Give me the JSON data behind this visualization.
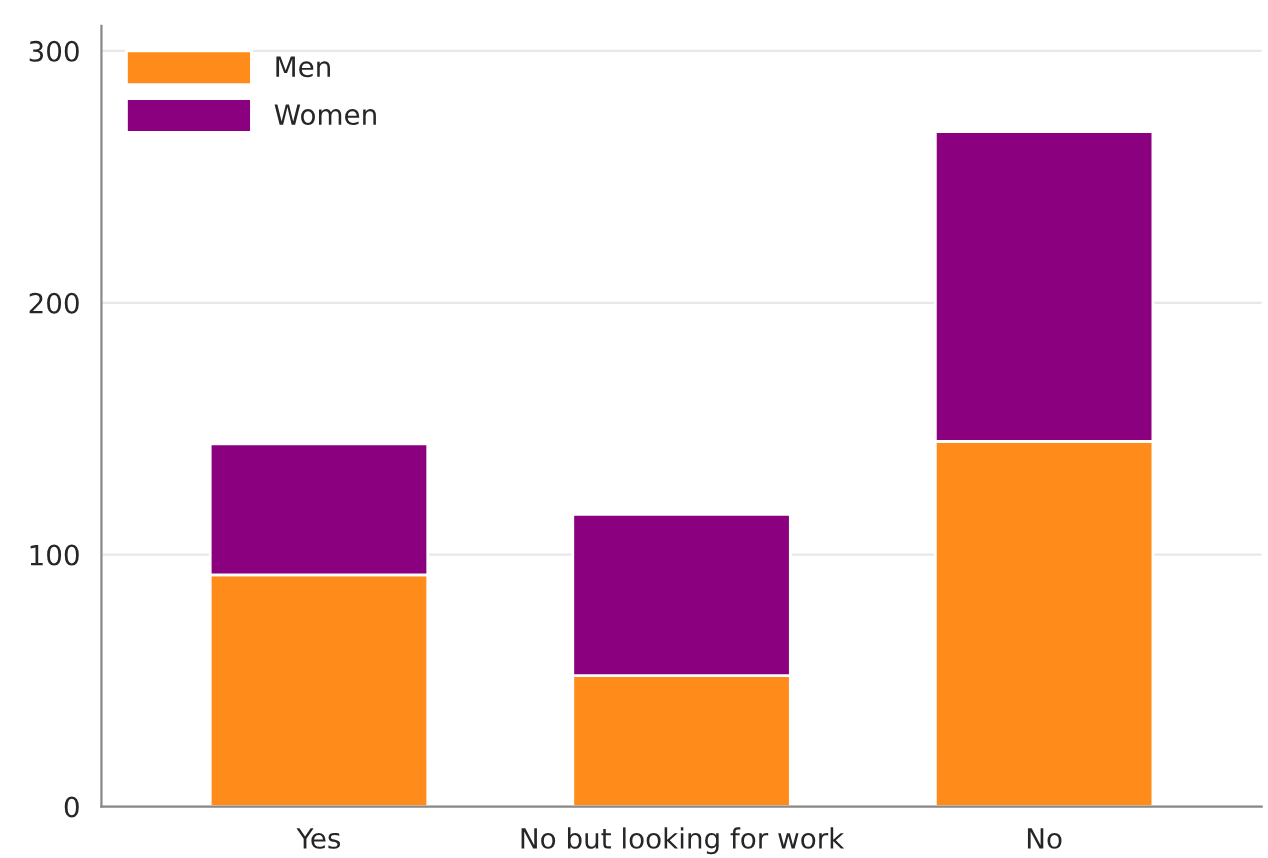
{
  "chart_data": {
    "type": "bar",
    "stacked": true,
    "categories": [
      "Yes",
      "No but looking for work",
      "No"
    ],
    "series": [
      {
        "name": "Men",
        "color": "#ff8c1a",
        "values": [
          92,
          52,
          145
        ]
      },
      {
        "name": "Women",
        "color": "#8b007f",
        "values": [
          52,
          64,
          123
        ]
      }
    ],
    "ylim": [
      0,
      310
    ],
    "yticks": [
      0,
      100,
      200,
      300
    ],
    "grid": "y",
    "legend": "top left"
  }
}
